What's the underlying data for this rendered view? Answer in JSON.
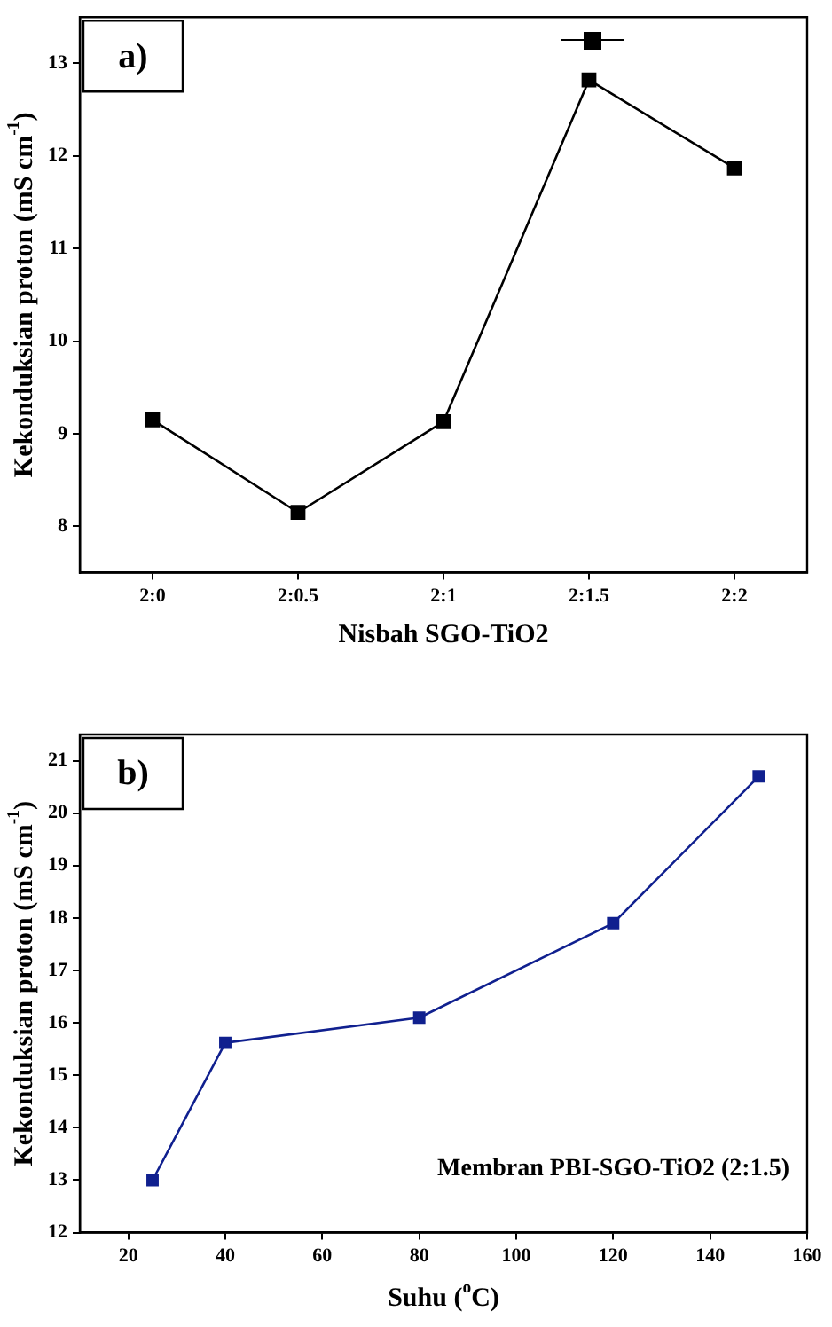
{
  "chart_data": [
    {
      "type": "line",
      "categories": [
        "2:0",
        "2:0.5",
        "2:1",
        "2:1.5",
        "2:2"
      ],
      "series": [
        {
          "color": "#000000",
          "values": [
            9.15,
            8.15,
            9.13,
            12.82,
            11.87
          ]
        }
      ],
      "ylim": [
        7.5,
        13.5
      ],
      "yticks": [
        8,
        9,
        10,
        11,
        12,
        13
      ],
      "xlabel": "Nisbah SGO-TiO2",
      "ylabel": "Kekonduksian proton (mS cm$^{-1}$)",
      "marker": "square",
      "line_style": "solid",
      "grid": false,
      "legend": false,
      "annotations": [
        "a)"
      ]
    },
    {
      "type": "line",
      "x": [
        25,
        40,
        80,
        120,
        150
      ],
      "series": [
        {
          "color": "#10208f",
          "values": [
            13.0,
            15.62,
            16.1,
            17.9,
            20.7
          ]
        }
      ],
      "xlim": [
        10,
        160
      ],
      "xticks": [
        20,
        40,
        60,
        80,
        100,
        120,
        140,
        160
      ],
      "ylim": [
        12,
        21.5
      ],
      "yticks": [
        12,
        13,
        14,
        15,
        16,
        17,
        18,
        19,
        20,
        21
      ],
      "xlabel": "Suhu ($^{o}$C)",
      "ylabel": "Kekonduksian proton (mS cm$^{-1}$)",
      "marker": "square",
      "line_style": "solid",
      "grid": false,
      "legend": false,
      "annotations": [
        "b)",
        "Membran PBI-SGO-TiO2 (2:1.5)"
      ]
    }
  ]
}
